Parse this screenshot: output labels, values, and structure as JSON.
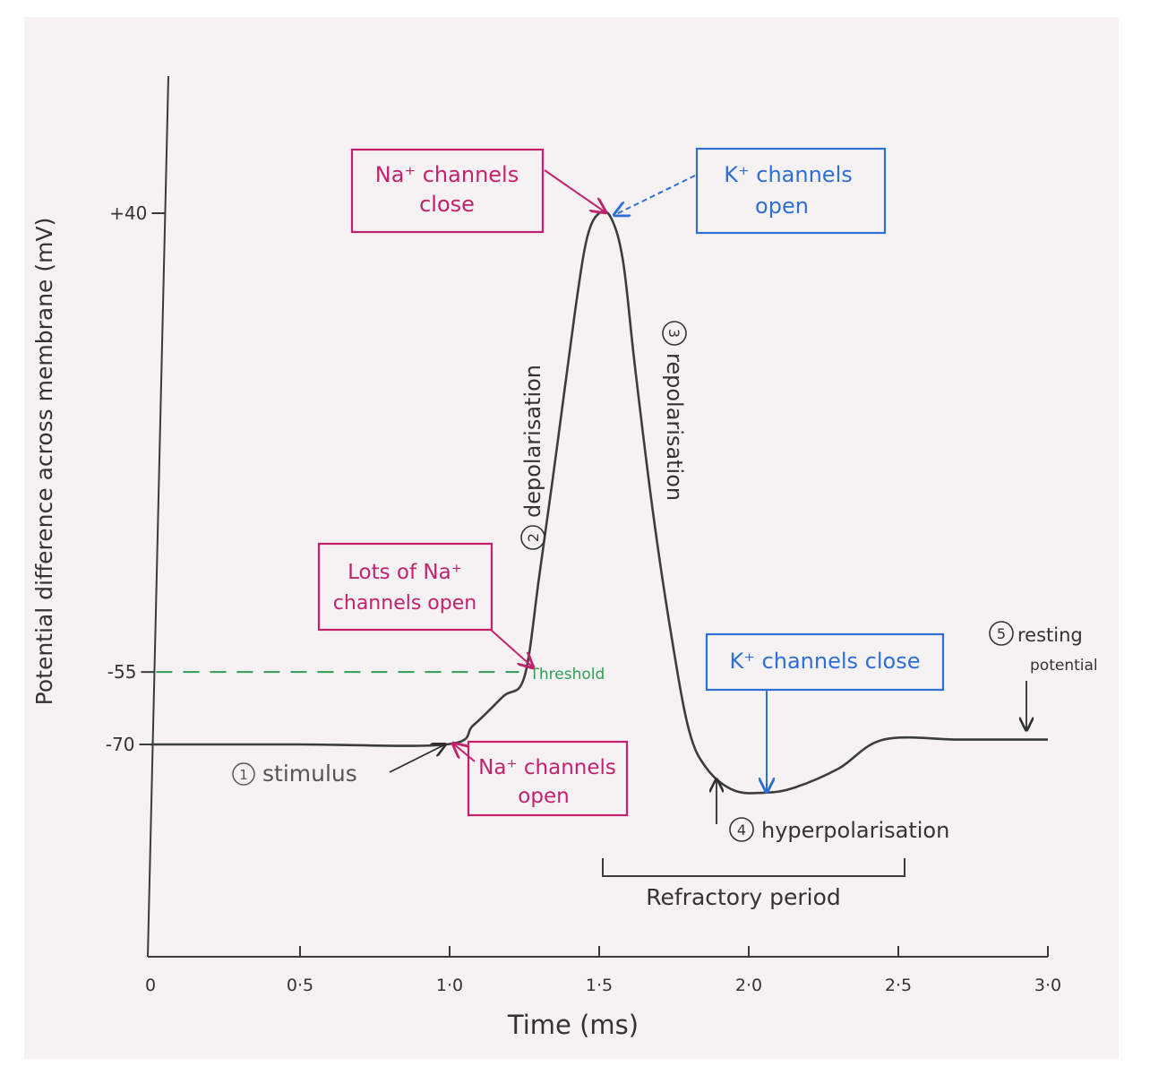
{
  "chart_data": {
    "type": "line",
    "title": "",
    "xlabel": "Time (ms)",
    "ylabel": "Potential difference across membrane (mV)",
    "xlim": [
      0,
      3.0
    ],
    "x_ticks": [
      {
        "value": 0,
        "label": "0"
      },
      {
        "value": 0.5,
        "label": "0·5"
      },
      {
        "value": 1.0,
        "label": "1·0"
      },
      {
        "value": 1.5,
        "label": "1·5"
      },
      {
        "value": 2.0,
        "label": "2·0"
      },
      {
        "value": 2.5,
        "label": "2·5"
      },
      {
        "value": 3.0,
        "label": "3·0"
      }
    ],
    "y_ticks": [
      {
        "value": 40,
        "label": "+40"
      },
      {
        "value": -55,
        "label": "-55"
      },
      {
        "value": -70,
        "label": "-70"
      }
    ],
    "grid": false,
    "series": [
      {
        "color": "#3a3d3a",
        "x": [
          0,
          0.5,
          0.99,
          1.08,
          1.18,
          1.25,
          1.3,
          1.36,
          1.42,
          1.46,
          1.5,
          1.54,
          1.58,
          1.62,
          1.68,
          1.74,
          1.8,
          1.86,
          1.95,
          2.05,
          2.15,
          2.3,
          2.45,
          2.7,
          2.9,
          3.0
        ],
        "y": [
          -70,
          -70,
          -70,
          -66,
          -60,
          -56,
          -35,
          -8,
          20,
          35,
          40,
          39,
          30,
          8,
          -22,
          -47,
          -67,
          -75,
          -79.5,
          -80,
          -79,
          -75,
          -69,
          -69,
          -69,
          -69
        ]
      }
    ],
    "threshold": {
      "value": -55,
      "label": "Threshold",
      "color": "#2e9e52"
    },
    "annotations": {
      "stimulus": {
        "num": "1",
        "text": "stimulus"
      },
      "depolarisation": {
        "num": "2",
        "text": "depolarisation"
      },
      "repolarisation": {
        "num": "3",
        "text": "repolarisation"
      },
      "hyperpolarisation": {
        "num": "4",
        "text": "hyperpolarisation"
      },
      "resting": {
        "num": "5",
        "line1": "resting",
        "line2": "potential"
      },
      "refractory": {
        "text": "Refractory period"
      }
    },
    "boxes": {
      "na_close": {
        "line1": "Na⁺ channels",
        "line2": "close",
        "color": "#c2216e"
      },
      "k_open": {
        "line1": "K⁺ channels",
        "line2": "open",
        "color": "#2d6fd6"
      },
      "lots_na": {
        "line1": "Lots of Na⁺",
        "line2": "channels open",
        "color": "#c2216e"
      },
      "na_open": {
        "line1": "Na⁺ channels",
        "line2": "open",
        "color": "#c2216e"
      },
      "k_close": {
        "line1": "K⁺ channels close",
        "color": "#2d6fd6"
      }
    }
  }
}
